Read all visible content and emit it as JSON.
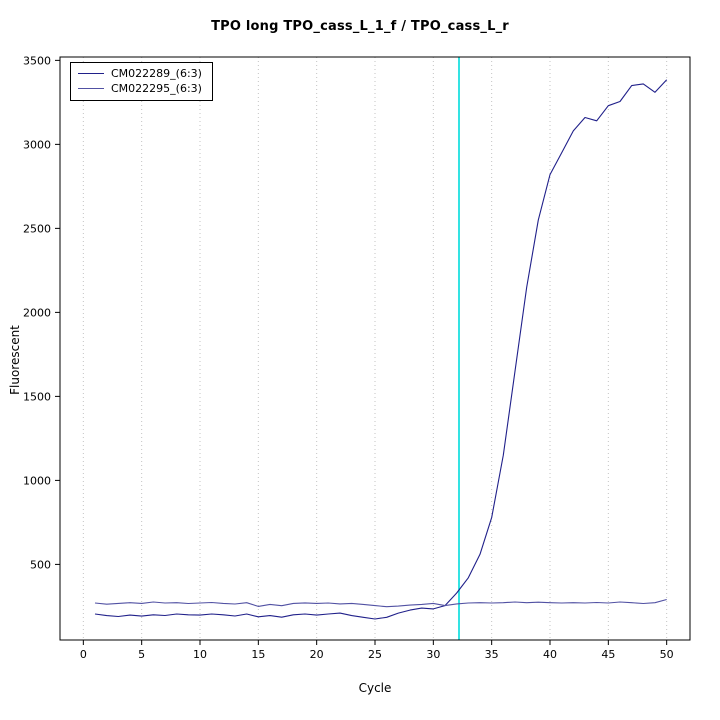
{
  "chart_data": {
    "type": "line",
    "title": "TPO long TPO_cass_L_1_f / TPO_cass_L_r",
    "xlabel": "Cycle",
    "ylabel": "Fluorescent",
    "xlim": [
      -2,
      52
    ],
    "ylim": [
      50,
      3520
    ],
    "xticks": [
      0,
      5,
      10,
      15,
      20,
      25,
      30,
      35,
      40,
      45,
      50
    ],
    "yticks": [
      500,
      1000,
      1500,
      2000,
      2500,
      3000,
      3500
    ],
    "grid": "vertical-dotted",
    "grid_color": "#c3c3c3",
    "axis_color": "#000000",
    "legend_position": "top-left",
    "threshold_line": {
      "x": 32.2,
      "color": "#00dcdc"
    },
    "x": [
      1,
      2,
      3,
      4,
      5,
      6,
      7,
      8,
      9,
      10,
      11,
      12,
      13,
      14,
      15,
      16,
      17,
      18,
      19,
      20,
      21,
      22,
      23,
      24,
      25,
      26,
      27,
      28,
      29,
      30,
      31,
      32,
      33,
      34,
      35,
      36,
      37,
      38,
      39,
      40,
      41,
      42,
      43,
      44,
      45,
      46,
      47,
      48,
      49,
      50
    ],
    "series": [
      {
        "name": "CM022289_(6:3)",
        "color": "#20208a",
        "values": [
          205,
          195,
          190,
          198,
          192,
          200,
          196,
          205,
          200,
          198,
          205,
          200,
          193,
          205,
          188,
          195,
          186,
          200,
          205,
          198,
          205,
          210,
          195,
          185,
          175,
          185,
          210,
          228,
          240,
          235,
          255,
          330,
          420,
          560,
          780,
          1150,
          1650,
          2150,
          2550,
          2820,
          2950,
          3080,
          3160,
          3140,
          3230,
          3255,
          3350,
          3360,
          3310,
          3385
        ]
      },
      {
        "name": "CM022295_(6:3)",
        "color": "#5151a3",
        "values": [
          270,
          263,
          268,
          272,
          268,
          276,
          270,
          272,
          267,
          270,
          273,
          268,
          264,
          272,
          250,
          262,
          254,
          268,
          271,
          268,
          270,
          265,
          268,
          262,
          255,
          248,
          252,
          258,
          262,
          268,
          255,
          265,
          270,
          272,
          270,
          272,
          276,
          272,
          275,
          272,
          270,
          272,
          270,
          273,
          270,
          276,
          272,
          267,
          272,
          291
        ]
      }
    ]
  }
}
